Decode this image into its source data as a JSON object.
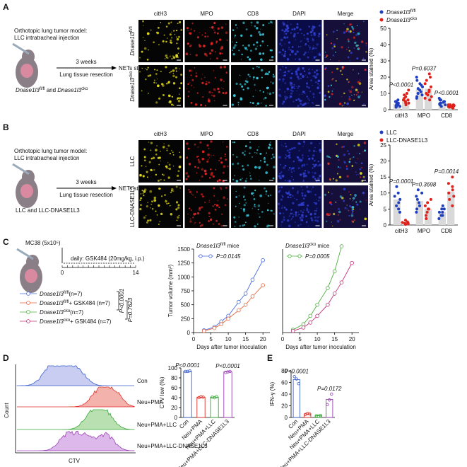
{
  "panel_a": {
    "label": "A",
    "schematic": {
      "model": [
        "Orthotopic lung tumor model:",
        "LLC intratracheal injection"
      ],
      "duration": "3 weeks",
      "procedure": "Lung tissue resection",
      "readout": "NETs staining",
      "groups": [
        {
          "text": "Dnase1l3",
          "style": "italic"
        },
        {
          "text": "fl/fl",
          "style": "sup"
        },
        " and ",
        {
          "text": "Dnase1l3",
          "style": "italic"
        },
        {
          "text": "cko",
          "style": "sup"
        }
      ]
    },
    "channels": [
      "citH3",
      "MPO",
      "CD8",
      "DAPI",
      "Merge"
    ],
    "rows": [
      [
        {
          "text": "Dnase1l3",
          "style": "italic"
        },
        {
          "text": "fl/fl",
          "style": "sup"
        }
      ],
      [
        {
          "text": "Dnase1l3",
          "style": "italic"
        },
        {
          "text": "cko",
          "style": "sup"
        }
      ]
    ]
  },
  "panel_b": {
    "label": "B",
    "schematic": {
      "model": [
        "Orthotopic lung tumor model:",
        "LLC intratracheal injection"
      ],
      "duration": "3 weeks",
      "procedure": "Lung tissue resection",
      "readout": "NETs staining",
      "groups": "LLC and LLC-DNASE1L3"
    },
    "channels": [
      "citH3",
      "MPO",
      "CD8",
      "DAPI",
      "Merge"
    ],
    "rows": [
      "LLC",
      "LLC-DNASE1L3"
    ]
  },
  "panel_c": {
    "label": "C",
    "cells": "MC38 (5x10⁵)",
    "treatment": "daily: GSK484 (20mg/kg, i.p.)",
    "timeline": [
      "0",
      "14"
    ],
    "comparisons": [
      "P<0.0001",
      "P=0.7623"
    ]
  },
  "panel_d": {
    "label": "D",
    "y_label": "Count",
    "x_label": "CTV"
  },
  "panel_e": {
    "label": "E"
  },
  "chart_data": [
    {
      "type": "bar",
      "y_label": "Area stained (%)",
      "categories": [
        "citH3",
        "MPO",
        "CD8"
      ],
      "bar_color": "#d9d9d9",
      "ylim": [
        0,
        50
      ],
      "yticks": [
        0,
        10,
        20,
        30,
        40,
        50
      ],
      "annotations": [
        "P<0.0001",
        "P=0.6037",
        "P<0.0001"
      ],
      "series": [
        {
          "name": [
            {
              "text": "Dnase1l3",
              "style": "italic"
            },
            {
              "text": "fl/fl",
              "style": "sup"
            }
          ],
          "color": "#1f3fbf",
          "values": [
            3.5,
            12.8,
            4.4
          ],
          "points": [
            [
              2,
              3,
              5,
              4,
              1.5,
              2.5,
              6,
              3,
              4,
              2,
              5,
              3.5
            ],
            [
              8,
              12,
              15,
              18,
              10,
              9,
              14,
              20,
              11,
              7,
              13,
              16
            ],
            [
              3,
              4,
              5,
              6,
              2,
              7,
              3.5,
              4,
              5,
              4.5,
              3,
              6
            ]
          ]
        },
        {
          "name": [
            {
              "text": "Dnase1l3",
              "style": "italic"
            },
            {
              "text": "cko",
              "style": "sup"
            }
          ],
          "color": "#e0201b",
          "values": [
            6.6,
            12.8,
            2.1
          ],
          "points": [
            [
              4,
              6,
              8,
              10,
              5,
              3,
              7,
              12,
              9,
              6,
              4,
              5
            ],
            [
              6,
              9,
              12,
              18,
              22,
              10,
              14,
              8,
              16,
              20,
              11,
              7
            ],
            [
              1,
              2,
              3,
              2.5,
              1.5,
              2,
              3,
              1,
              2,
              2.5,
              1.8,
              3
            ]
          ]
        }
      ]
    },
    {
      "type": "bar",
      "y_label": "Area stained (%)",
      "categories": [
        "citH3",
        "MPO",
        "CD8"
      ],
      "bar_color": "#d9d9d9",
      "ylim": [
        0,
        25
      ],
      "yticks": [
        0,
        5,
        10,
        15,
        20,
        25
      ],
      "annotations": [
        "P=0.0001",
        "P=0.3698",
        "P=0.0014"
      ],
      "series": [
        {
          "name": "LLC",
          "color": "#1f3fbf",
          "values": [
            8,
            7.5,
            4
          ],
          "points": [
            [
              9,
              12,
              6,
              8,
              5,
              4,
              10,
              7
            ],
            [
              8,
              10,
              6,
              5,
              9,
              7,
              4,
              11
            ],
            [
              3,
              5,
              4,
              2,
              6,
              3,
              4,
              5
            ]
          ]
        },
        {
          "name": "LLC-DNASE1L3",
          "color": "#e0201b",
          "values": [
            0.6,
            5,
            10.5
          ],
          "points": [
            [
              0.5,
              1,
              0.3,
              0.8,
              0.2,
              1.5,
              0.4,
              0.6
            ],
            [
              3,
              6,
              5,
              8,
              4,
              2,
              7,
              5
            ],
            [
              10,
              13,
              8,
              15,
              12,
              6,
              9,
              11
            ]
          ]
        }
      ]
    },
    {
      "type": "line",
      "title": [
        {
          "text": "Dnase1l3",
          "style": "italic"
        },
        {
          "text": "fl/fl",
          "style": "sup"
        },
        " mice"
      ],
      "annotation": "P=0.0145",
      "x_label": "Days after tumor inoculation",
      "y_label": "Tumor volume (mm³)",
      "xlim": [
        0,
        22
      ],
      "xticks": [
        0,
        5,
        10,
        15,
        20
      ],
      "ylim": [
        0,
        1500
      ],
      "yticks": [
        0,
        250,
        500,
        750,
        1000,
        1250,
        1500
      ],
      "series": [
        {
          "name": [
            {
              "text": "Dnase1l3",
              "style": "italic"
            },
            {
              "text": "fl/fl",
              "style": "sup"
            },
            "(n=7)"
          ],
          "color": "#4a6be0",
          "x": [
            3,
            6,
            8,
            10,
            13,
            15,
            17,
            20
          ],
          "values": [
            40,
            100,
            200,
            300,
            550,
            700,
            950,
            1300
          ]
        },
        {
          "name": [
            {
              "text": "Dnase1l3",
              "style": "italic"
            },
            {
              "text": "fl/fl",
              "style": "sup"
            },
            "+ GSK484 (n=7)"
          ],
          "color": "#e8653a",
          "x": [
            3,
            6,
            8,
            10,
            13,
            15,
            17,
            20
          ],
          "values": [
            30,
            80,
            150,
            250,
            400,
            500,
            650,
            850
          ]
        }
      ]
    },
    {
      "type": "line",
      "title": [
        {
          "text": "Dnase1l3",
          "style": "italic"
        },
        {
          "text": "cko",
          "style": "sup"
        },
        " mice"
      ],
      "annotation": "P=0.0005",
      "x_label": "Days after tumor inoculation",
      "xlim": [
        0,
        22
      ],
      "xticks": [
        0,
        5,
        10,
        15,
        20
      ],
      "ylim": [
        0,
        1500
      ],
      "series": [
        {
          "name": [
            {
              "text": "Dnase1l3",
              "style": "italic"
            },
            {
              "text": "cko",
              "style": "sup"
            },
            "(n=7)"
          ],
          "color": "#4caf3c",
          "x": [
            3,
            6,
            8,
            10,
            13,
            15,
            17
          ],
          "values": [
            50,
            150,
            300,
            500,
            800,
            1100,
            1550
          ]
        },
        {
          "name": [
            {
              "text": "Dnase1l3",
              "style": "italic"
            },
            {
              "text": "cko",
              "style": "sup"
            },
            "+ GSK484 (n=7)"
          ],
          "color": "#c2307a",
          "x": [
            3,
            6,
            8,
            10,
            13,
            15,
            17,
            20
          ],
          "values": [
            30,
            90,
            180,
            300,
            500,
            700,
            900,
            1250
          ]
        }
      ]
    },
    {
      "type": "bar",
      "y_label": "CTV low (%)",
      "categories": [
        "Con",
        "Neu+PMA",
        "Neu+PMA+LLC",
        "Neu+PMA+LLC-DNASE1L3"
      ],
      "colors": [
        "#3a5fcd",
        "#e0302a",
        "#3aa83a",
        "#9b3fb5"
      ],
      "ylim": [
        0,
        100
      ],
      "yticks": [
        0,
        20,
        40,
        60,
        80,
        100
      ],
      "annotations": [
        "P<0.0001",
        null,
        null,
        "P<0.0001"
      ],
      "values": [
        93,
        41,
        41,
        92
      ],
      "points": [
        [
          93,
          93,
          94
        ],
        [
          40,
          42,
          41
        ],
        [
          41,
          40,
          42
        ],
        [
          91,
          92,
          93
        ]
      ]
    },
    {
      "type": "bar",
      "y_label": "IFN-γ (%)",
      "categories": [
        "Con",
        "Neu+PMA",
        "Neu+PMA+LLC",
        "Neu+PMA+LLC-DNASE1L3"
      ],
      "colors": [
        "#3a5fcd",
        "#e0302a",
        "#3aa83a",
        "#9b3fb5"
      ],
      "ylim": [
        0,
        80
      ],
      "yticks": [
        0,
        20,
        40,
        60,
        80
      ],
      "annotations": [
        "P<0.0001",
        null,
        null,
        "P=0.0172"
      ],
      "values": [
        65,
        6,
        3,
        31
      ],
      "points": [
        [
          70,
          66,
          58
        ],
        [
          5,
          7,
          6
        ],
        [
          3,
          2.5,
          3.5
        ],
        [
          22,
          30,
          40
        ]
      ]
    }
  ]
}
